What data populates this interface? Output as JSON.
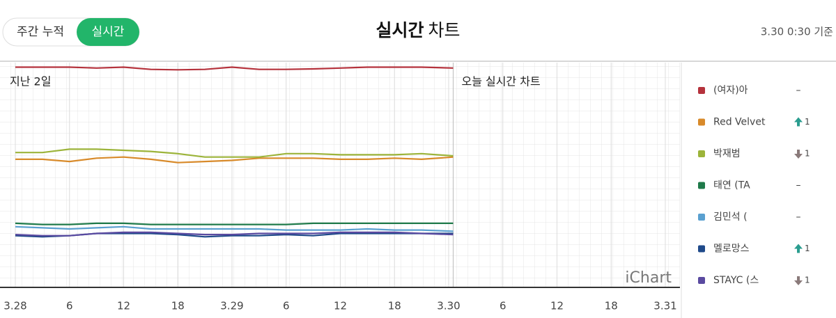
{
  "header": {
    "tabs": [
      "주간 누적",
      "실시간"
    ],
    "active_tab": 1,
    "title_bold": "실시간",
    "title_rest": "차트",
    "timestamp": "3.30 0:30 기준"
  },
  "chart_data": {
    "type": "line",
    "annotations": {
      "past": "지난 2일",
      "today": "오늘 실시간 차트",
      "watermark": "iChart"
    },
    "divider_x": 48.5,
    "x": [
      0,
      3,
      6,
      9,
      12,
      15,
      18,
      21,
      24,
      27,
      30,
      33,
      36,
      39,
      42,
      45,
      48.5
    ],
    "xlim": [
      0,
      72
    ],
    "xticks": [
      {
        "value": 0,
        "label": "3.28"
      },
      {
        "value": 6,
        "label": "6"
      },
      {
        "value": 12,
        "label": "12"
      },
      {
        "value": 18,
        "label": "18"
      },
      {
        "value": 24,
        "label": "3.29"
      },
      {
        "value": 30,
        "label": "6"
      },
      {
        "value": 36,
        "label": "12"
      },
      {
        "value": 42,
        "label": "18"
      },
      {
        "value": 48,
        "label": "3.30"
      },
      {
        "value": 54,
        "label": "6"
      },
      {
        "value": 60,
        "label": "12"
      },
      {
        "value": 66,
        "label": "18"
      },
      {
        "value": 72,
        "label": "3.31"
      }
    ],
    "ylim": [
      0,
      100
    ],
    "grid": true,
    "series": [
      {
        "name": "(여자)아",
        "color": "#b5323c",
        "change": "–",
        "change_direction": "same",
        "values": [
          98,
          98,
          98,
          97.6,
          98,
          97,
          96.8,
          97,
          98,
          97,
          97,
          97.2,
          97.6,
          98,
          98,
          98,
          97.6
        ]
      },
      {
        "name": "Red Velvet",
        "color": "#d88a2a",
        "change": 1,
        "change_direction": "up",
        "values": [
          57,
          57,
          56,
          57.5,
          58,
          57,
          55.5,
          56,
          56.5,
          57.5,
          57.5,
          57.5,
          57,
          57,
          57.5,
          57,
          58
        ]
      },
      {
        "name": "박재범",
        "color": "#9cb43a",
        "change": 1,
        "change_direction": "down",
        "values": [
          60,
          60,
          61.5,
          61.5,
          61,
          60.5,
          59.5,
          58,
          58,
          58,
          59.5,
          59.5,
          59,
          59,
          59,
          59.5,
          58.5
        ]
      },
      {
        "name": "태연 (TA",
        "color": "#1f7a4a",
        "change": "–",
        "change_direction": "same",
        "values": [
          28.5,
          28,
          28,
          28.5,
          28.5,
          28,
          28,
          28,
          28,
          28,
          28,
          28.5,
          28.5,
          28.5,
          28.5,
          28.5,
          28.5
        ]
      },
      {
        "name": "김민석 (",
        "color": "#5aa0d0",
        "change": "–",
        "change_direction": "same",
        "values": [
          27,
          26.5,
          26,
          26.5,
          27,
          26,
          26,
          26,
          26,
          26,
          25.5,
          25.5,
          25.5,
          26,
          25.5,
          25.5,
          25
        ]
      },
      {
        "name": "멜로망스",
        "color": "#1f4a8a",
        "change": 1,
        "change_direction": "up",
        "values": [
          23,
          22.5,
          23,
          24,
          24,
          24,
          23.5,
          22.5,
          23,
          23,
          23.5,
          23,
          24,
          24,
          24,
          24,
          24
        ]
      },
      {
        "name": "STAYC (스",
        "color": "#5a4aa0",
        "change": 1,
        "change_direction": "down",
        "values": [
          23.5,
          23,
          23,
          24,
          24.5,
          24.5,
          24,
          23.5,
          23.5,
          24,
          24,
          24,
          24.5,
          24.5,
          24.5,
          24,
          23.5
        ]
      }
    ]
  }
}
